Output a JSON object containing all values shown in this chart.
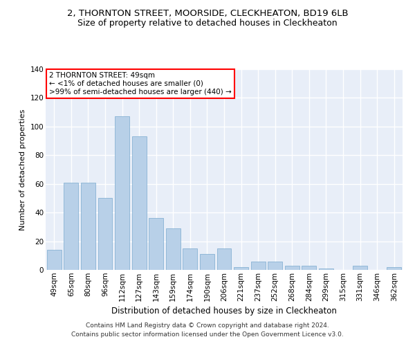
{
  "title_line1": "2, THORNTON STREET, MOORSIDE, CLECKHEATON, BD19 6LB",
  "title_line2": "Size of property relative to detached houses in Cleckheaton",
  "xlabel": "Distribution of detached houses by size in Cleckheaton",
  "ylabel": "Number of detached properties",
  "categories": [
    "49sqm",
    "65sqm",
    "80sqm",
    "96sqm",
    "112sqm",
    "127sqm",
    "143sqm",
    "159sqm",
    "174sqm",
    "190sqm",
    "206sqm",
    "221sqm",
    "237sqm",
    "252sqm",
    "268sqm",
    "284sqm",
    "299sqm",
    "315sqm",
    "331sqm",
    "346sqm",
    "362sqm"
  ],
  "values": [
    14,
    61,
    61,
    50,
    107,
    93,
    36,
    29,
    15,
    11,
    15,
    2,
    6,
    6,
    3,
    3,
    1,
    0,
    3,
    0,
    2
  ],
  "bar_color": "#b8d0e8",
  "bar_edge_color": "#7aaace",
  "annotation_line1": "2 THORNTON STREET: 49sqm",
  "annotation_line2": "← <1% of detached houses are smaller (0)",
  "annotation_line3": ">99% of semi-detached houses are larger (440) →",
  "ylim": [
    0,
    140
  ],
  "yticks": [
    0,
    20,
    40,
    60,
    80,
    100,
    120,
    140
  ],
  "bg_color": "#e8eef8",
  "grid_color": "#ffffff",
  "footer_line1": "Contains HM Land Registry data © Crown copyright and database right 2024.",
  "footer_line2": "Contains public sector information licensed under the Open Government Licence v3.0.",
  "title_fontsize": 9.5,
  "subtitle_fontsize": 9,
  "axis_label_fontsize": 8.5,
  "ylabel_fontsize": 8,
  "tick_fontsize": 7.5,
  "annotation_fontsize": 7.5,
  "footer_fontsize": 6.5
}
